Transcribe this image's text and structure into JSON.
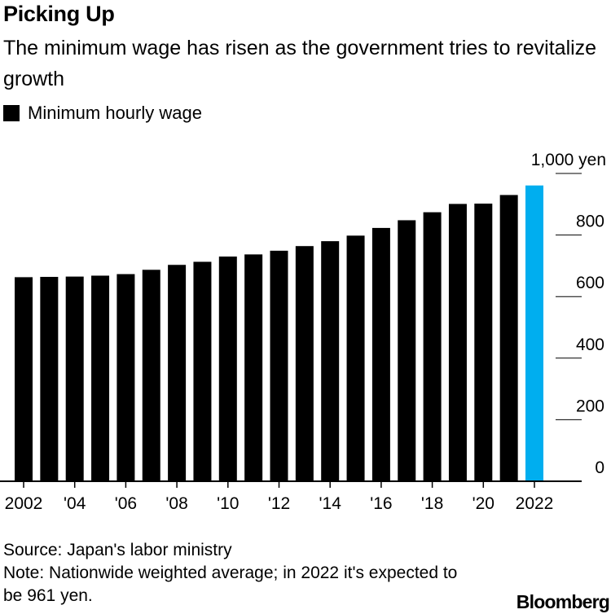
{
  "title": "Picking Up",
  "subtitle": "The minimum wage has risen as the government tries to revitalize growth",
  "legend": {
    "label": "Minimum hourly wage"
  },
  "source": "Source: Japan's labor ministry",
  "note": "Note: Nationwide weighted average; in 2022 it's expected to be 961 yen.",
  "brand": "Bloomberg",
  "colors": {
    "bar": "#000000",
    "highlight": "#00aeef",
    "axis": "#000000"
  },
  "chart_data": {
    "type": "bar",
    "categories": [
      "2002",
      "2003",
      "2004",
      "2005",
      "2006",
      "2007",
      "2008",
      "2009",
      "2010",
      "2011",
      "2012",
      "2013",
      "2014",
      "2015",
      "2016",
      "2017",
      "2018",
      "2019",
      "2020",
      "2021",
      "2022"
    ],
    "values": [
      663,
      664,
      665,
      668,
      673,
      687,
      703,
      713,
      730,
      737,
      749,
      764,
      780,
      798,
      823,
      848,
      874,
      901,
      902,
      930,
      961
    ],
    "series": [
      {
        "name": "Minimum hourly wage",
        "values": [
          663,
          664,
          665,
          668,
          673,
          687,
          703,
          713,
          730,
          737,
          749,
          764,
          780,
          798,
          823,
          848,
          874,
          901,
          902,
          930,
          961
        ]
      }
    ],
    "highlight_index": 20,
    "xtick_labels": [
      "2002",
      "'04",
      "'06",
      "'08",
      "'10",
      "'12",
      "'14",
      "'16",
      "'18",
      "'20",
      "2022"
    ],
    "ytick_labels": [
      "0",
      "200",
      "400",
      "600",
      "800",
      "1,000 yen"
    ],
    "yticks": [
      0,
      200,
      400,
      600,
      800,
      1000
    ],
    "ylim": [
      0,
      1000
    ],
    "grid": true,
    "axis_side": "right",
    "legend_position": "top-left"
  }
}
